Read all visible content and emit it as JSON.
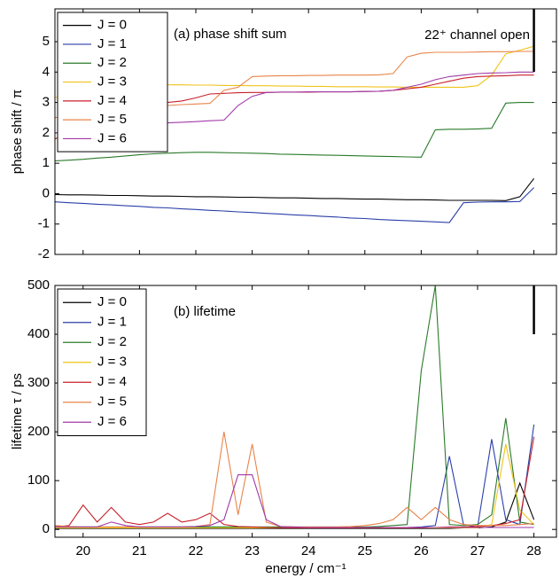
{
  "chart_data": [
    {
      "type": "line",
      "title": "(a)  phase shift sum",
      "annotation": "22⁺ channel open",
      "y_label": "phase shift / π",
      "threshold_x": 28,
      "x": [
        19.5,
        19.75,
        20,
        20.25,
        20.5,
        20.75,
        21,
        21.25,
        21.5,
        21.75,
        22,
        22.25,
        22.5,
        22.75,
        23,
        23.25,
        23.5,
        23.75,
        24,
        24.25,
        24.5,
        24.75,
        25,
        25.25,
        25.5,
        25.75,
        26,
        26.25,
        26.5,
        26.75,
        27,
        27.25,
        27.5,
        27.75,
        28
      ],
      "xlim": [
        19.5,
        28.4
      ],
      "xticks": [
        20,
        21,
        22,
        23,
        24,
        25,
        26,
        27,
        28
      ],
      "ylim": [
        -2,
        6.08
      ],
      "yticks": [
        -2,
        -1,
        0,
        1,
        2,
        3,
        4,
        5
      ],
      "legend": "upper left",
      "series": [
        {
          "name": "J = 0",
          "color": "#000000",
          "values": [
            -0.03,
            -0.04,
            -0.04,
            -0.05,
            -0.06,
            -0.06,
            -0.07,
            -0.08,
            -0.08,
            -0.09,
            -0.1,
            -0.1,
            -0.11,
            -0.12,
            -0.12,
            -0.13,
            -0.14,
            -0.14,
            -0.15,
            -0.16,
            -0.16,
            -0.17,
            -0.18,
            -0.18,
            -0.19,
            -0.2,
            -0.2,
            -0.21,
            -0.22,
            -0.22,
            -0.22,
            -0.22,
            -0.23,
            -0.1,
            0.5
          ]
        },
        {
          "name": "J = 1",
          "color": "#2a3fa8",
          "values": [
            -0.27,
            -0.3,
            -0.32,
            -0.35,
            -0.37,
            -0.4,
            -0.42,
            -0.45,
            -0.47,
            -0.5,
            -0.52,
            -0.55,
            -0.57,
            -0.6,
            -0.62,
            -0.65,
            -0.67,
            -0.7,
            -0.72,
            -0.75,
            -0.77,
            -0.8,
            -0.82,
            -0.85,
            -0.87,
            -0.89,
            -0.91,
            -0.93,
            -0.95,
            -0.3,
            -0.28,
            -0.27,
            -0.27,
            -0.26,
            0.2
          ]
        },
        {
          "name": "J = 2",
          "color": "#2a7a2a",
          "values": [
            1.08,
            1.1,
            1.13,
            1.17,
            1.2,
            1.24,
            1.28,
            1.31,
            1.33,
            1.35,
            1.36,
            1.36,
            1.35,
            1.34,
            1.33,
            1.32,
            1.3,
            1.29,
            1.28,
            1.27,
            1.26,
            1.25,
            1.24,
            1.23,
            1.22,
            1.21,
            1.2,
            2.1,
            2.12,
            2.12,
            2.13,
            2.15,
            2.98,
            3.0,
            3.0
          ]
        },
        {
          "name": "J = 3",
          "color": "#f0c419",
          "values": [
            3.15,
            3.3,
            3.42,
            3.5,
            3.55,
            3.57,
            3.58,
            3.58,
            3.58,
            3.58,
            3.57,
            3.57,
            3.56,
            3.56,
            3.55,
            3.55,
            3.54,
            3.54,
            3.53,
            3.53,
            3.52,
            3.52,
            3.52,
            3.51,
            3.51,
            3.5,
            3.5,
            3.5,
            3.5,
            3.5,
            3.55,
            3.9,
            4.6,
            4.72,
            4.85
          ]
        },
        {
          "name": "J = 4",
          "color": "#c8202a",
          "values": [
            1.8,
            2.0,
            2.5,
            2.6,
            2.85,
            2.9,
            2.92,
            2.95,
            3.0,
            3.05,
            3.15,
            3.28,
            3.3,
            3.32,
            3.33,
            3.33,
            3.34,
            3.34,
            3.34,
            3.35,
            3.35,
            3.35,
            3.36,
            3.37,
            3.4,
            3.45,
            3.5,
            3.6,
            3.7,
            3.8,
            3.85,
            3.87,
            3.88,
            3.9,
            3.9
          ]
        },
        {
          "name": "J = 5",
          "color": "#e8844a",
          "values": [
            2.5,
            2.55,
            2.6,
            2.65,
            2.7,
            2.75,
            2.8,
            2.85,
            2.9,
            2.93,
            2.95,
            2.97,
            3.4,
            3.5,
            3.85,
            3.87,
            3.88,
            3.88,
            3.89,
            3.89,
            3.9,
            3.9,
            3.9,
            3.91,
            3.95,
            4.5,
            4.62,
            4.65,
            4.65,
            4.65,
            4.66,
            4.67,
            4.67,
            4.68,
            4.68
          ]
        },
        {
          "name": "J = 6",
          "color": "#a03aa8",
          "values": [
            2.0,
            2.05,
            2.1,
            2.15,
            2.2,
            2.25,
            2.28,
            2.3,
            2.33,
            2.35,
            2.37,
            2.4,
            2.42,
            2.9,
            3.2,
            3.33,
            3.34,
            3.34,
            3.35,
            3.35,
            3.35,
            3.35,
            3.36,
            3.37,
            3.4,
            3.5,
            3.6,
            3.75,
            3.85,
            3.9,
            3.95,
            3.97,
            3.98,
            4.0,
            4.0
          ]
        }
      ]
    },
    {
      "type": "line",
      "title": "(b)  lifetime",
      "y_label": "lifetime  τ / ps",
      "x_label": "energy / cm⁻¹",
      "threshold_x": 28,
      "x": [
        19.5,
        19.75,
        20,
        20.25,
        20.5,
        20.75,
        21,
        21.25,
        21.5,
        21.75,
        22,
        22.25,
        22.5,
        22.75,
        23,
        23.25,
        23.5,
        23.75,
        24,
        24.25,
        24.5,
        24.75,
        25,
        25.25,
        25.5,
        25.75,
        26,
        26.25,
        26.5,
        26.75,
        27,
        27.25,
        27.5,
        27.75,
        28
      ],
      "xlim": [
        19.5,
        28.4
      ],
      "xticks": [
        20,
        21,
        22,
        23,
        24,
        25,
        26,
        27,
        28
      ],
      "ylim": [
        -16,
        500
      ],
      "yticks": [
        0,
        100,
        200,
        300,
        400,
        500
      ],
      "legend": "upper left",
      "series": [
        {
          "name": "J = 0",
          "color": "#000000",
          "values": [
            2,
            2,
            2,
            2,
            2,
            2,
            2,
            2,
            2,
            2,
            2,
            2,
            2,
            2,
            2,
            2,
            2,
            2,
            2,
            2,
            2,
            2,
            2,
            2,
            2,
            2,
            2,
            2,
            2,
            3,
            3,
            5,
            15,
            95,
            20
          ]
        },
        {
          "name": "J = 1",
          "color": "#2a3fa8",
          "values": [
            3,
            3,
            3,
            3,
            3,
            3,
            3,
            3,
            3,
            3,
            3,
            3,
            3,
            3,
            3,
            3,
            3,
            3,
            3,
            3,
            3,
            3,
            3,
            3,
            3,
            4,
            5,
            8,
            150,
            10,
            5,
            185,
            20,
            10,
            215
          ]
        },
        {
          "name": "J = 2",
          "color": "#2a7a2a",
          "values": [
            5,
            5,
            5,
            5,
            5,
            5,
            5,
            5,
            5,
            5,
            5,
            5,
            5,
            5,
            5,
            5,
            5,
            5,
            5,
            5,
            5,
            5,
            5,
            6,
            8,
            10,
            325,
            500,
            10,
            8,
            10,
            30,
            228,
            15,
            10
          ]
        },
        {
          "name": "J = 3",
          "color": "#f0c419",
          "values": [
            3,
            3,
            3,
            3,
            3,
            3,
            3,
            3,
            3,
            3,
            3,
            3,
            3,
            3,
            3,
            3,
            3,
            3,
            3,
            3,
            3,
            3,
            3,
            3,
            3,
            3,
            3,
            3,
            3,
            3,
            3,
            10,
            175,
            40,
            10
          ]
        },
        {
          "name": "J = 4",
          "color": "#c8202a",
          "values": [
            5,
            8,
            50,
            15,
            45,
            15,
            10,
            15,
            33,
            15,
            20,
            33,
            10,
            6,
            5,
            4,
            3,
            3,
            3,
            3,
            3,
            3,
            3,
            3,
            3,
            3,
            3,
            4,
            5,
            5,
            6,
            8,
            12,
            20,
            190
          ]
        },
        {
          "name": "J = 5",
          "color": "#e8844a",
          "values": [
            8,
            6,
            5,
            5,
            5,
            5,
            5,
            5,
            5,
            5,
            6,
            10,
            200,
            30,
            175,
            15,
            6,
            5,
            5,
            5,
            5,
            6,
            8,
            12,
            20,
            45,
            20,
            45,
            20,
            10,
            8,
            8,
            8,
            10,
            12
          ]
        },
        {
          "name": "J = 6",
          "color": "#a03aa8",
          "values": [
            5,
            5,
            5,
            5,
            15,
            8,
            5,
            5,
            5,
            5,
            6,
            8,
            20,
            112,
            112,
            20,
            6,
            5,
            4,
            4,
            4,
            4,
            4,
            4,
            4,
            4,
            4,
            4,
            4,
            4,
            4,
            4,
            4,
            4,
            4
          ]
        }
      ]
    }
  ]
}
